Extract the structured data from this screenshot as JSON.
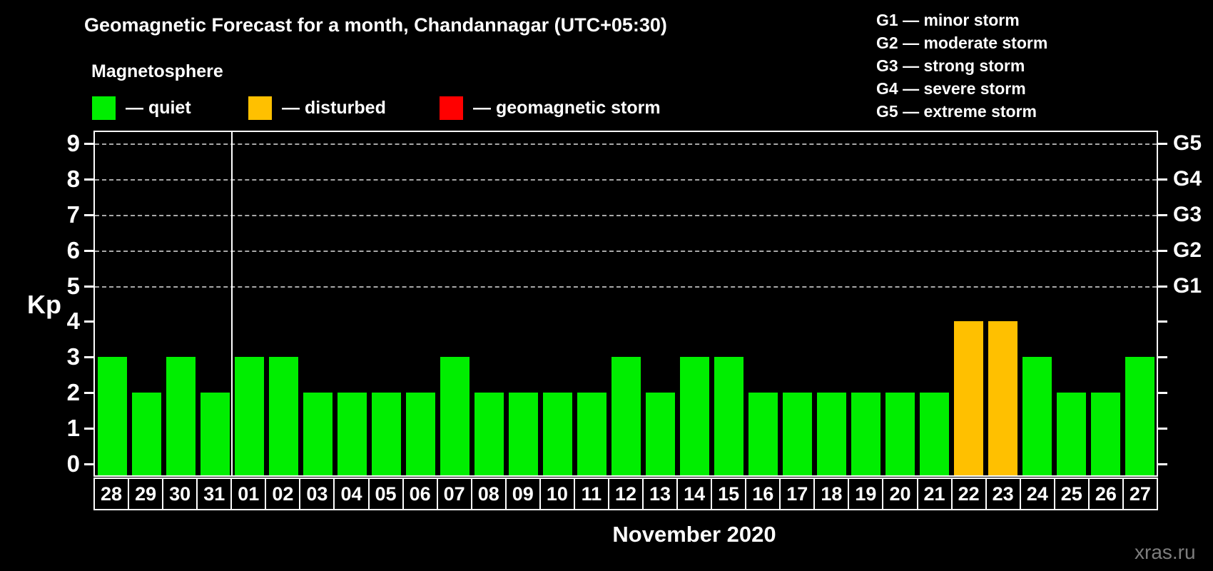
{
  "header": {
    "title": "Geomagnetic Forecast for a month, Chandannagar (UTC+05:30)",
    "subtitle": "Magnetosphere"
  },
  "legend": {
    "items": [
      {
        "key": "quiet",
        "label": "— quiet",
        "color": "#00ee00"
      },
      {
        "key": "disturbed",
        "label": "— disturbed",
        "color": "#ffc000"
      },
      {
        "key": "storm",
        "label": "— geomagnetic storm",
        "color": "#ff0000"
      }
    ]
  },
  "g_scale": {
    "items": [
      "G1 — minor storm",
      "G2 — moderate storm",
      "G3 — strong storm",
      "G4 — severe storm",
      "G5 — extreme storm"
    ]
  },
  "watermark": "xras.ru",
  "chart_data": {
    "type": "bar",
    "title": "Geomagnetic Forecast for a month, Chandannagar (UTC+05:30)",
    "ylabel": "Kp",
    "xlabel": "November 2020",
    "categories": [
      "28",
      "29",
      "30",
      "31",
      "01",
      "02",
      "03",
      "04",
      "05",
      "06",
      "07",
      "08",
      "09",
      "10",
      "11",
      "12",
      "13",
      "14",
      "15",
      "16",
      "17",
      "18",
      "19",
      "20",
      "21",
      "22",
      "23",
      "24",
      "25",
      "26",
      "27"
    ],
    "values": [
      3,
      2,
      3,
      2,
      3,
      3,
      2,
      2,
      2,
      2,
      3,
      2,
      2,
      2,
      2,
      3,
      2,
      3,
      3,
      2,
      2,
      2,
      2,
      2,
      2,
      4,
      4,
      3,
      2,
      2,
      3
    ],
    "statuses": [
      "quiet",
      "quiet",
      "quiet",
      "quiet",
      "quiet",
      "quiet",
      "quiet",
      "quiet",
      "quiet",
      "quiet",
      "quiet",
      "quiet",
      "quiet",
      "quiet",
      "quiet",
      "quiet",
      "quiet",
      "quiet",
      "quiet",
      "quiet",
      "quiet",
      "quiet",
      "quiet",
      "quiet",
      "quiet",
      "disturbed",
      "disturbed",
      "quiet",
      "quiet",
      "quiet",
      "quiet"
    ],
    "bar_colors": {
      "quiet": "#00ee00",
      "disturbed": "#ffc000",
      "storm": "#ff0000"
    },
    "ylim": [
      0,
      9.3
    ],
    "yticks": [
      0,
      1,
      2,
      3,
      4,
      5,
      6,
      7,
      8,
      9
    ],
    "grid_kp_levels": [
      5,
      6,
      7,
      8,
      9
    ],
    "right_axis_labels": [
      {
        "kp": 5,
        "label": "G1"
      },
      {
        "kp": 6,
        "label": "G2"
      },
      {
        "kp": 7,
        "label": "G3"
      },
      {
        "kp": 8,
        "label": "G4"
      },
      {
        "kp": 9,
        "label": "G5"
      }
    ],
    "legend_position": "top",
    "grid": "dashed horizontal at G1–G5 levels",
    "month_separator_index": 4
  }
}
